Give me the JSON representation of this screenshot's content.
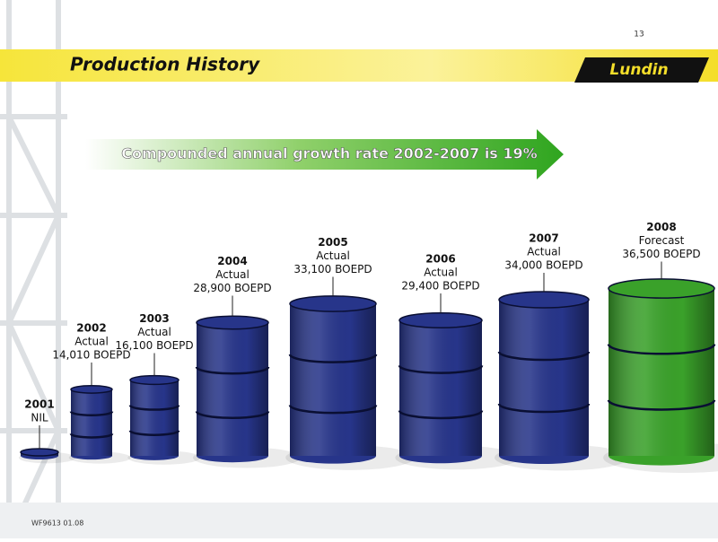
{
  "page_number": "13",
  "title": "Production History",
  "logo": "Lundin",
  "footer": "WF9613 01.08",
  "chart_data": {
    "type": "barrel",
    "annotation": "Compounded annual growth rate 2002-2007 is 19%",
    "categories": [
      "2001",
      "2002",
      "2003",
      "2004",
      "2005",
      "2006",
      "2007",
      "2008"
    ],
    "statuses": [
      null,
      "Actual",
      "Actual",
      "Actual",
      "Actual",
      "Actual",
      "Actual",
      "Forecast"
    ],
    "values": [
      0,
      14010,
      16100,
      28900,
      33100,
      29400,
      34000,
      36500
    ],
    "value_labels": [
      "NIL",
      "14,010 BOEPD",
      "16,100 BOEPD",
      "28,900 BOEPD",
      "33,100 BOEPD",
      "29,400 BOEPD",
      "34,000 BOEPD",
      "36,500 BOEPD"
    ],
    "colors": [
      "#27358a",
      "#27358a",
      "#27358a",
      "#27358a",
      "#27358a",
      "#27358a",
      "#27358a",
      "#3aa12a"
    ]
  }
}
